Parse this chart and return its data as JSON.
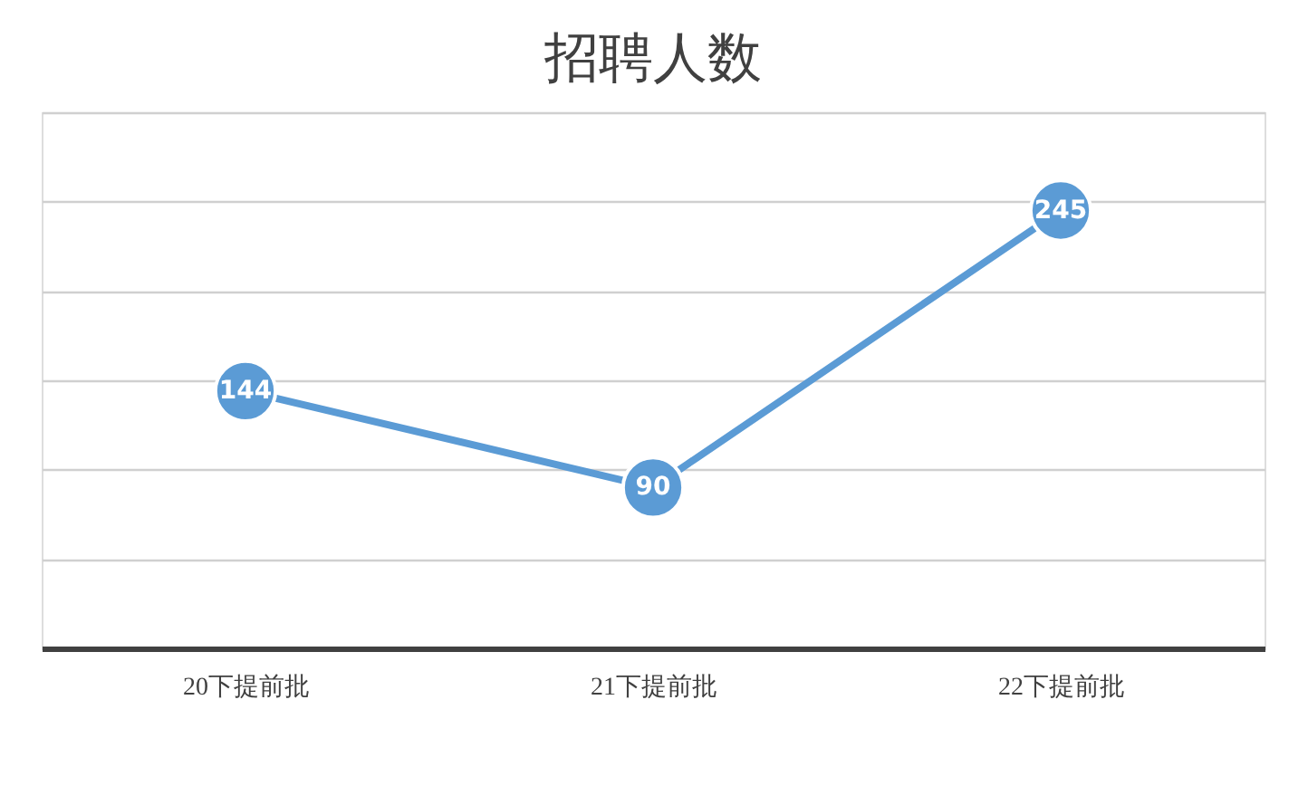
{
  "chart_data": {
    "type": "line",
    "title": "招聘人数",
    "categories": [
      "20下提前批",
      "21下提前批",
      "22下提前批"
    ],
    "series": [
      {
        "color": "#5b9bd5",
        "values": [
          144,
          90,
          245
        ]
      }
    ],
    "ylim": [
      0,
      300
    ],
    "yticks": [
      {
        "value": 0,
        "label": null
      },
      {
        "value": 50,
        "label": null
      },
      {
        "value": 100,
        "label": null
      },
      {
        "value": 150,
        "label": null
      },
      {
        "value": 200,
        "label": null
      },
      {
        "value": 250,
        "label": null
      },
      {
        "value": 300,
        "label": null
      }
    ],
    "grid": "y",
    "tick_labels": "x",
    "data_labels": true,
    "marker": "circle",
    "line_style": "solid"
  }
}
